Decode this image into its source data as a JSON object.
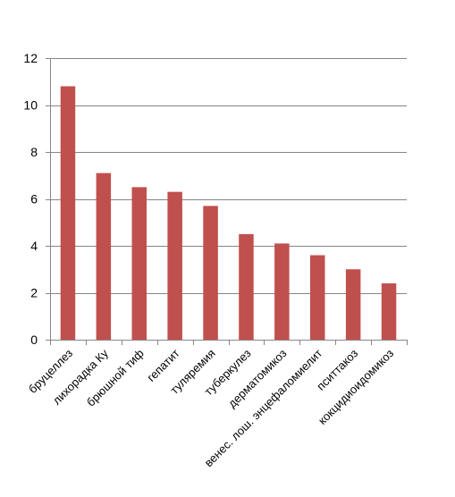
{
  "chart_data": {
    "type": "bar",
    "categories": [
      "бруцеллез",
      "лихорадка Ку",
      "брюшной тиф",
      "гепатит",
      "туляремия",
      "туберкулез",
      "дерматомикоз",
      "венес. лош. энцефаломиелит",
      "пситтакоз",
      "кокцидиоидомикоз"
    ],
    "values": [
      10.8,
      7.1,
      6.5,
      6.3,
      5.7,
      4.5,
      4.1,
      3.6,
      3.0,
      2.4
    ],
    "ylim": [
      0,
      12
    ],
    "yticks": [
      0,
      2,
      4,
      6,
      8,
      10,
      12
    ],
    "grid": true,
    "legend": "none",
    "bar_color": "#c0504d",
    "grid_color": "#868686",
    "axis_color": "#868686"
  }
}
